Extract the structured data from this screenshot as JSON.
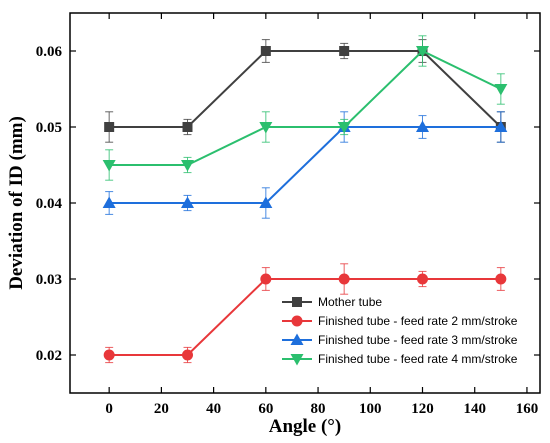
{
  "chart_data": {
    "type": "line",
    "xlabel": "Angle (°)",
    "ylabel": "Deviation of ID (mm)",
    "xlim": [
      -15,
      165
    ],
    "ylim": [
      0.015,
      0.065
    ],
    "x_ticks": [
      "0",
      "20",
      "40",
      "60",
      "80",
      "100",
      "120",
      "140",
      "160"
    ],
    "y_ticks": [
      "0.02",
      "0.03",
      "0.04",
      "0.05",
      "0.06"
    ],
    "x": [
      0,
      30,
      60,
      90,
      120,
      150
    ],
    "legend_position": "bottom-right",
    "series": [
      {
        "name": "Mother tube",
        "color": "#404040",
        "marker": "square",
        "values": [
          0.05,
          0.05,
          0.06,
          0.06,
          0.06,
          0.05
        ],
        "errors": [
          0.002,
          0.001,
          0.0015,
          0.001,
          0.0015,
          0.002
        ]
      },
      {
        "name": "Finished tube - feed rate 2 mm/stroke",
        "color": "#e8373a",
        "marker": "circle",
        "values": [
          0.02,
          0.02,
          0.03,
          0.03,
          0.03,
          0.03
        ],
        "errors": [
          0.001,
          0.001,
          0.0015,
          0.002,
          0.001,
          0.0015
        ]
      },
      {
        "name": "Finished tube - feed rate 3 mm/stroke",
        "color": "#1e6fdc",
        "marker": "triangle-up",
        "values": [
          0.04,
          0.04,
          0.04,
          0.05,
          0.05,
          0.05
        ],
        "errors": [
          0.0015,
          0.001,
          0.002,
          0.002,
          0.0015,
          0.002
        ]
      },
      {
        "name": "Finished tube - feed rate 4 mm/stroke",
        "color": "#2bbf6e",
        "marker": "triangle-down",
        "values": [
          0.045,
          0.045,
          0.05,
          0.05,
          0.06,
          0.055
        ],
        "errors": [
          0.002,
          0.001,
          0.002,
          0.001,
          0.002,
          0.002
        ]
      }
    ]
  }
}
